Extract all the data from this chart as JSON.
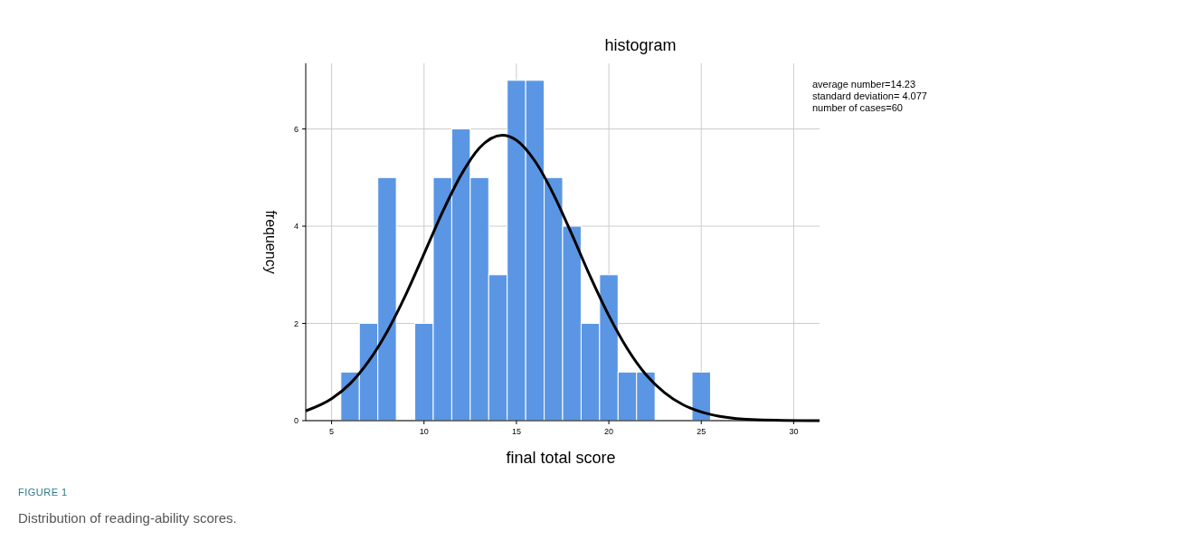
{
  "chart_data": {
    "type": "histogram",
    "title": "histogram",
    "xlabel": "final total score",
    "ylabel": "frequency",
    "bins": [
      5.5,
      6.5,
      7.5,
      8.5,
      9.5,
      10.5,
      11.5,
      12.5,
      13.5,
      14.5,
      15.5,
      16.5,
      17.5,
      18.5,
      19.5,
      20.5,
      21.5,
      22.5,
      23.5,
      24.5,
      25.5
    ],
    "values": [
      1,
      2,
      5,
      0,
      2,
      5,
      6,
      5,
      3,
      7,
      7,
      5,
      4,
      2,
      3,
      1,
      1,
      0,
      0,
      1
    ],
    "color": "#5a96e3",
    "series": [
      {
        "type": "line",
        "color": "#000000",
        "x": [
          3.6,
          5,
          6,
          7,
          8,
          9,
          10,
          11,
          12,
          13,
          14.23,
          15,
          16,
          17,
          18,
          19,
          20,
          21,
          22,
          23,
          24,
          25,
          26,
          28,
          31.4
        ],
        "values": [
          0.2,
          0.45,
          0.76,
          1.22,
          1.83,
          2.58,
          3.43,
          4.29,
          5.05,
          5.61,
          5.87,
          5.77,
          5.34,
          4.66,
          3.83,
          2.96,
          2.16,
          1.48,
          0.95,
          0.58,
          0.33,
          0.18,
          0.09,
          0.02,
          0
        ]
      }
    ],
    "xlim": [
      3.6,
      31.4
    ],
    "xticks": [
      5,
      10,
      15,
      20,
      25,
      30
    ],
    "ylim": [
      0,
      7.35
    ],
    "yticks": [
      0,
      2,
      4,
      6
    ],
    "grid": true,
    "annotations": [
      "average number=14.23",
      "standard deviation= 4.077",
      "number of cases=60",
      "FIGURE 1",
      "Distribution of reading-ability scores."
    ]
  }
}
